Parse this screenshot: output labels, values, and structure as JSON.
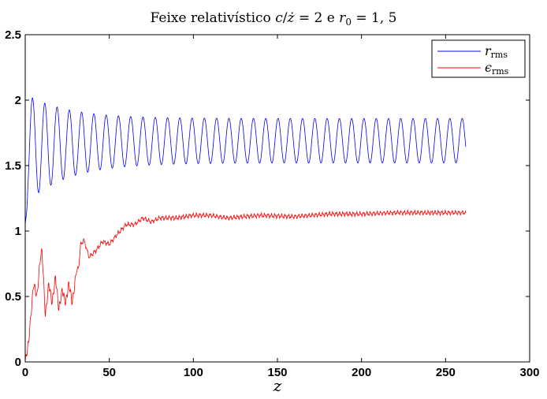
{
  "chart_data": {
    "type": "line",
    "title": "Feixe relativístico c/ż = 2 e r₀ = 1,5",
    "title_parts": {
      "text1": "Feixe relativístico ",
      "c": "c",
      "slash": "/",
      "zdot": "ż",
      "eq1": " = 2 e ",
      "r": "r",
      "r_sub": "0",
      "eq2": " = 1, 5"
    },
    "xlabel": "z",
    "ylabel": "",
    "xlim": [
      0,
      300
    ],
    "ylim": [
      0,
      2.5
    ],
    "xticks": [
      0,
      50,
      100,
      150,
      200,
      250,
      300
    ],
    "yticks": [
      0,
      0.5,
      1,
      1.5,
      2,
      2.5
    ],
    "xtick_labels": [
      "0",
      "50",
      "100",
      "150",
      "200",
      "250",
      "300"
    ],
    "ytick_labels": [
      "0",
      "0.5",
      "1",
      "1.5",
      "2",
      "2.5"
    ],
    "grid": false,
    "legend": "top-right",
    "series": [
      {
        "name": "r_rms",
        "label_main": "r",
        "label_sub": "rms",
        "color": "#0000ff",
        "x_end": 262,
        "oscillation": {
          "period": 7.3,
          "initial_value": 1.05,
          "first_peak": 2.05,
          "first_trough": 1.3,
          "late_max": 1.86,
          "late_min": 1.52,
          "final_value": 1.55
        },
        "samples": [
          [
            0,
            1.05
          ],
          [
            3,
            2.05
          ],
          [
            7,
            1.3
          ],
          [
            11,
            2.03
          ],
          [
            14,
            1.2
          ],
          [
            20,
            2.07
          ],
          [
            23,
            1.17
          ],
          [
            27,
            2.03
          ],
          [
            31,
            1.23
          ],
          [
            34,
            2.0
          ],
          [
            38,
            1.29
          ],
          [
            42,
            1.98
          ],
          [
            45,
            1.35
          ],
          [
            49,
            1.97
          ],
          [
            53,
            1.38
          ],
          [
            56,
            1.95
          ],
          [
            60,
            1.42
          ],
          [
            64,
            1.93
          ],
          [
            67,
            1.45
          ],
          [
            100,
            1.88
          ],
          [
            104,
            1.52
          ],
          [
            150,
            1.87
          ],
          [
            154,
            1.52
          ],
          [
            200,
            1.87
          ],
          [
            204,
            1.52
          ],
          [
            250,
            1.86
          ],
          [
            254,
            1.53
          ],
          [
            262,
            1.55
          ]
        ]
      },
      {
        "name": "epsilon_rms",
        "label_main": "ϵ",
        "label_sub": "rms",
        "color": "#ff0000",
        "x_end": 262,
        "samples": [
          [
            0,
            0.0
          ],
          [
            2,
            0.15
          ],
          [
            4,
            0.45
          ],
          [
            5,
            0.6
          ],
          [
            7,
            0.5
          ],
          [
            9,
            0.8
          ],
          [
            10,
            0.85
          ],
          [
            12,
            0.35
          ],
          [
            14,
            0.6
          ],
          [
            16,
            0.45
          ],
          [
            18,
            0.65
          ],
          [
            20,
            0.4
          ],
          [
            22,
            0.55
          ],
          [
            24,
            0.45
          ],
          [
            26,
            0.6
          ],
          [
            28,
            0.45
          ],
          [
            30,
            0.65
          ],
          [
            32,
            0.75
          ],
          [
            33,
            0.9
          ],
          [
            35,
            0.93
          ],
          [
            38,
            0.8
          ],
          [
            42,
            0.85
          ],
          [
            46,
            0.92
          ],
          [
            50,
            0.9
          ],
          [
            55,
            0.98
          ],
          [
            60,
            1.05
          ],
          [
            65,
            1.05
          ],
          [
            70,
            1.1
          ],
          [
            75,
            1.07
          ],
          [
            80,
            1.1
          ],
          [
            90,
            1.1
          ],
          [
            100,
            1.12
          ],
          [
            110,
            1.12
          ],
          [
            120,
            1.1
          ],
          [
            140,
            1.12
          ],
          [
            160,
            1.11
          ],
          [
            180,
            1.13
          ],
          [
            200,
            1.13
          ],
          [
            220,
            1.14
          ],
          [
            240,
            1.14
          ],
          [
            262,
            1.14
          ]
        ]
      }
    ]
  }
}
